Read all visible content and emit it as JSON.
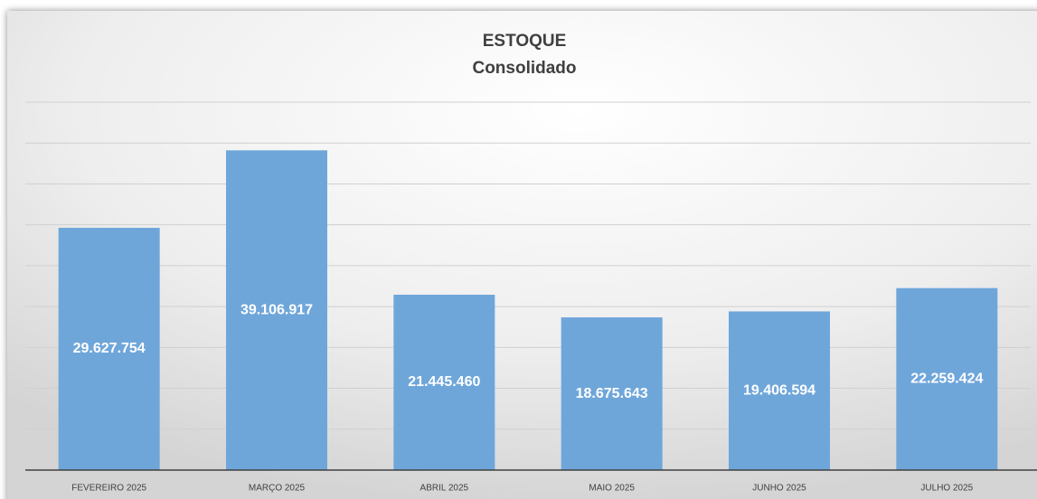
{
  "chart_data": {
    "type": "bar",
    "title": "ESTOQUE",
    "subtitle": "Consolidado",
    "categories": [
      "FEVEREIRO 2025",
      "MARÇO 2025",
      "ABRIL 2025",
      "MAIO 2025",
      "JUNHO 2025",
      "JULHO 2025"
    ],
    "values": [
      29627754,
      39106917,
      21445460,
      18675643,
      19406594,
      22259424
    ],
    "value_labels": [
      "29.627.754",
      "39.106.917",
      "21.445.460",
      "18.675.643",
      "19.406.594",
      "22.259.424"
    ],
    "color": "#6fa6da",
    "ylim": [
      0,
      45000000
    ],
    "yticks": [
      0,
      5000000,
      10000000,
      15000000,
      20000000,
      25000000,
      30000000,
      35000000,
      40000000,
      45000000
    ],
    "grid": true
  }
}
